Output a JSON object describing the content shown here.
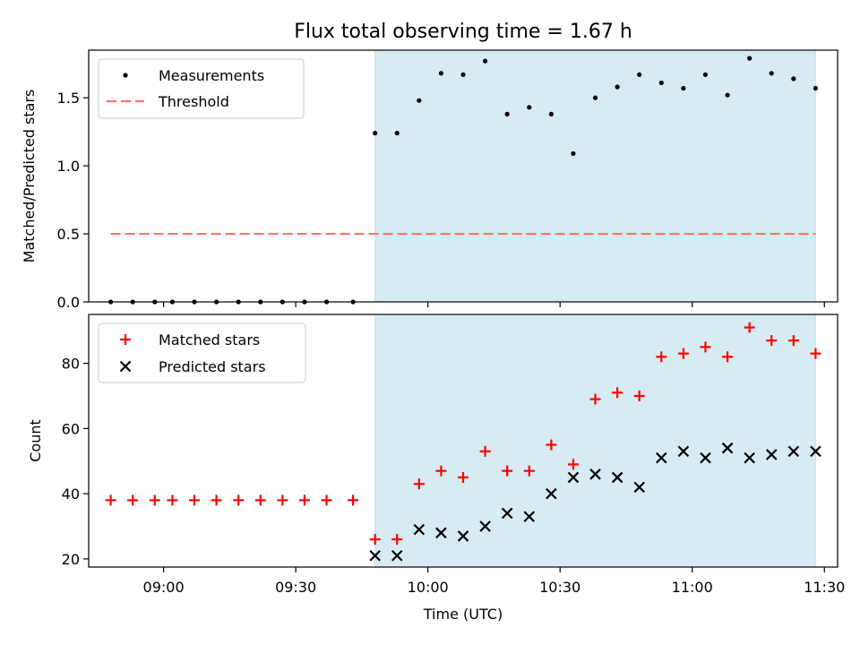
{
  "chart_data": [
    {
      "type": "scatter",
      "title": "Flux total observing time = 1.67 h",
      "ylabel": "Matched/Predicted stars",
      "xlabel": "",
      "ylim": [
        0,
        1.85
      ],
      "yticks": [
        "0.0",
        "0.5",
        "1.0",
        "1.5"
      ],
      "legend_position": "top-left",
      "shaded_region": {
        "start": "09:48",
        "end": "11:28",
        "color": "#add8e6"
      },
      "threshold": {
        "name": "Threshold",
        "value": 0.5,
        "x_start": "08:48",
        "x_end": "11:28",
        "color": "#ff7070"
      },
      "series": [
        {
          "name": "Measurements",
          "marker": "dot",
          "color": "#000000",
          "x": [
            "08:48",
            "08:53",
            "08:58",
            "09:02",
            "09:07",
            "09:12",
            "09:17",
            "09:22",
            "09:27",
            "09:32",
            "09:37",
            "09:43",
            "09:48",
            "09:53",
            "09:58",
            "10:03",
            "10:08",
            "10:13",
            "10:18",
            "10:23",
            "10:28",
            "10:33",
            "10:38",
            "10:43",
            "10:48",
            "10:53",
            "10:58",
            "11:03",
            "11:08",
            "11:13",
            "11:18",
            "11:23",
            "11:28"
          ],
          "values": [
            0,
            0,
            0,
            0,
            0,
            0,
            0,
            0,
            0,
            0,
            0,
            0,
            1.24,
            1.24,
            1.48,
            1.68,
            1.67,
            1.77,
            1.38,
            1.43,
            1.38,
            1.09,
            1.5,
            1.58,
            1.67,
            1.61,
            1.57,
            1.67,
            1.52,
            1.79,
            1.68,
            1.64,
            1.57
          ]
        }
      ]
    },
    {
      "type": "scatter",
      "xlabel": "Time (UTC)",
      "ylabel": "Count",
      "ylim": [
        17.5,
        95
      ],
      "yticks": [
        "20",
        "40",
        "60",
        "80"
      ],
      "xticks": [
        "09:00",
        "09:30",
        "10:00",
        "10:30",
        "11:00",
        "11:30"
      ],
      "legend_position": "top-left",
      "shaded_region": {
        "start": "09:48",
        "end": "11:28",
        "color": "#add8e6"
      },
      "series": [
        {
          "name": "Matched stars",
          "marker": "plus",
          "color": "#ff0000",
          "x": [
            "08:48",
            "08:53",
            "08:58",
            "09:02",
            "09:07",
            "09:12",
            "09:17",
            "09:22",
            "09:27",
            "09:32",
            "09:37",
            "09:43",
            "09:48",
            "09:53",
            "09:58",
            "10:03",
            "10:08",
            "10:13",
            "10:18",
            "10:23",
            "10:28",
            "10:33",
            "10:38",
            "10:43",
            "10:48",
            "10:53",
            "10:58",
            "11:03",
            "11:08",
            "11:13",
            "11:18",
            "11:23",
            "11:28"
          ],
          "values": [
            38,
            38,
            38,
            38,
            38,
            38,
            38,
            38,
            38,
            38,
            38,
            38,
            26,
            26,
            43,
            47,
            45,
            53,
            47,
            47,
            55,
            49,
            69,
            71,
            70,
            82,
            83,
            85,
            82,
            91,
            87,
            87,
            83
          ]
        },
        {
          "name": "Predicted stars",
          "marker": "x",
          "color": "#000000",
          "x": [
            "09:48",
            "09:53",
            "09:58",
            "10:03",
            "10:08",
            "10:13",
            "10:18",
            "10:23",
            "10:28",
            "10:33",
            "10:38",
            "10:43",
            "10:48",
            "10:53",
            "10:58",
            "11:03",
            "11:08",
            "11:13",
            "11:18",
            "11:23",
            "11:28"
          ],
          "values": [
            21,
            21,
            29,
            28,
            27,
            30,
            34,
            33,
            40,
            45,
            46,
            45,
            42,
            51,
            53,
            51,
            54,
            51,
            52,
            53,
            53
          ]
        }
      ]
    }
  ]
}
